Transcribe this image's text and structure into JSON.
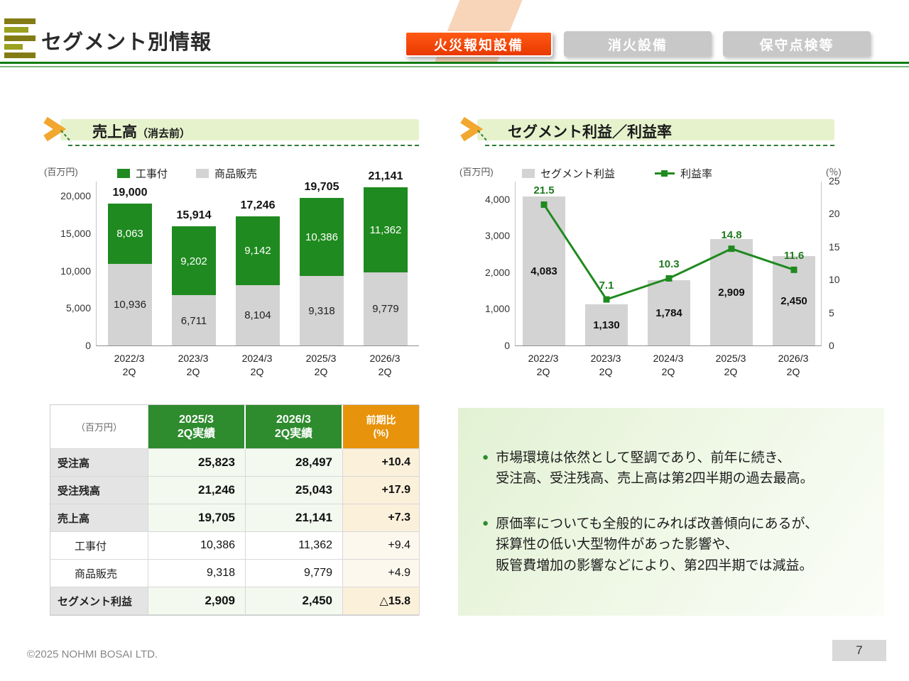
{
  "header": {
    "title": "セグメント別情報",
    "tabs": [
      {
        "label": "火災報知設備",
        "active": true
      },
      {
        "label": "消火設備",
        "active": false
      },
      {
        "label": "保守点検等",
        "active": false
      }
    ]
  },
  "sections": {
    "sales": {
      "title": "売上高",
      "title_suffix": "（消去前）"
    },
    "profit": {
      "title": "セグメント利益／利益率"
    }
  },
  "chart_data": [
    {
      "type": "bar",
      "stacked": true,
      "title": "売上高（消去前）",
      "ylabel": "(百万円)",
      "ylim": [
        0,
        22000
      ],
      "yticks": [
        0,
        5000,
        10000,
        15000,
        20000
      ],
      "categories": [
        "2022/3\n2Q",
        "2023/3\n2Q",
        "2024/3\n2Q",
        "2025/3\n2Q",
        "2026/3\n2Q"
      ],
      "series": [
        {
          "name": "商品販売",
          "color": "#d3d3d3",
          "values": [
            10936,
            6711,
            8104,
            9318,
            9779
          ]
        },
        {
          "name": "工事付",
          "color": "#1f8a1f",
          "values": [
            8063,
            9202,
            9142,
            10386,
            11362
          ]
        }
      ],
      "totals": [
        19000,
        15914,
        17246,
        19705,
        21141
      ],
      "legend_order": [
        "工事付",
        "商品販売"
      ],
      "legend_position": "top"
    },
    {
      "type": "bar+line",
      "title": "セグメント利益／利益率",
      "ylabel_left": "(百万円)",
      "ylabel_right": "(％)",
      "ylim_left": [
        0,
        4500
      ],
      "yticks_left": [
        0,
        1000,
        2000,
        3000,
        4000
      ],
      "ylim_right": [
        0,
        25
      ],
      "yticks_right": [
        0,
        5,
        10,
        15,
        20,
        25
      ],
      "categories": [
        "2022/3\n2Q",
        "2023/3\n2Q",
        "2024/3\n2Q",
        "2025/3\n2Q",
        "2026/3\n2Q"
      ],
      "bar_series": {
        "name": "セグメント利益",
        "color": "#d3d3d3",
        "values": [
          4083,
          1130,
          1784,
          2909,
          2450
        ]
      },
      "line_series": {
        "name": "利益率",
        "color": "#1f8a1f",
        "values": [
          21.5,
          7.1,
          10.3,
          14.8,
          11.6
        ]
      },
      "legend_position": "top"
    }
  ],
  "table": {
    "columns": [
      "（百万円）",
      "2025/3\n2Q実績",
      "2026/3\n2Q実績",
      "前期比\n(%)"
    ],
    "rows": [
      {
        "label": "受注高",
        "v2025": "25,823",
        "v2026": "28,497",
        "yoy": "+10.4",
        "emphasis": true,
        "indent": false
      },
      {
        "label": "受注残高",
        "v2025": "21,246",
        "v2026": "25,043",
        "yoy": "+17.9",
        "emphasis": true,
        "indent": false
      },
      {
        "label": "売上高",
        "v2025": "19,705",
        "v2026": "21,141",
        "yoy": "+7.3",
        "emphasis": true,
        "indent": false
      },
      {
        "label": "工事付",
        "v2025": "10,386",
        "v2026": "11,362",
        "yoy": "+9.4",
        "emphasis": false,
        "indent": true
      },
      {
        "label": "商品販売",
        "v2025": "9,318",
        "v2026": "9,779",
        "yoy": "+4.9",
        "emphasis": false,
        "indent": true
      },
      {
        "label": "セグメント利益",
        "v2025": "2,909",
        "v2026": "2,450",
        "yoy": "△15.8",
        "emphasis": true,
        "indent": false
      }
    ]
  },
  "notes": {
    "bullets": [
      "市場環境は依然として堅調であり、前年に続き、\n受注高、受注残高、売上高は第2四半期の過去最高。",
      "原価率についても全般的にみれば改善傾向にあるが、\n採算性の低い大型物件があった影響や、\n販管費増加の影響などにより、第2四半期では減益。"
    ]
  },
  "footer": {
    "copyright": "©2025 NOHMI BOSAI LTD.",
    "page": "7"
  },
  "colors": {
    "accent_green": "#1f8a1f",
    "banner_green": "#e6f2cc",
    "tab_active": "#ea3c00",
    "tab_inactive": "#c8c8c8",
    "table_header_green": "#2e8b2e",
    "table_header_orange": "#e8930c",
    "bar_gray": "#d3d3d3"
  }
}
